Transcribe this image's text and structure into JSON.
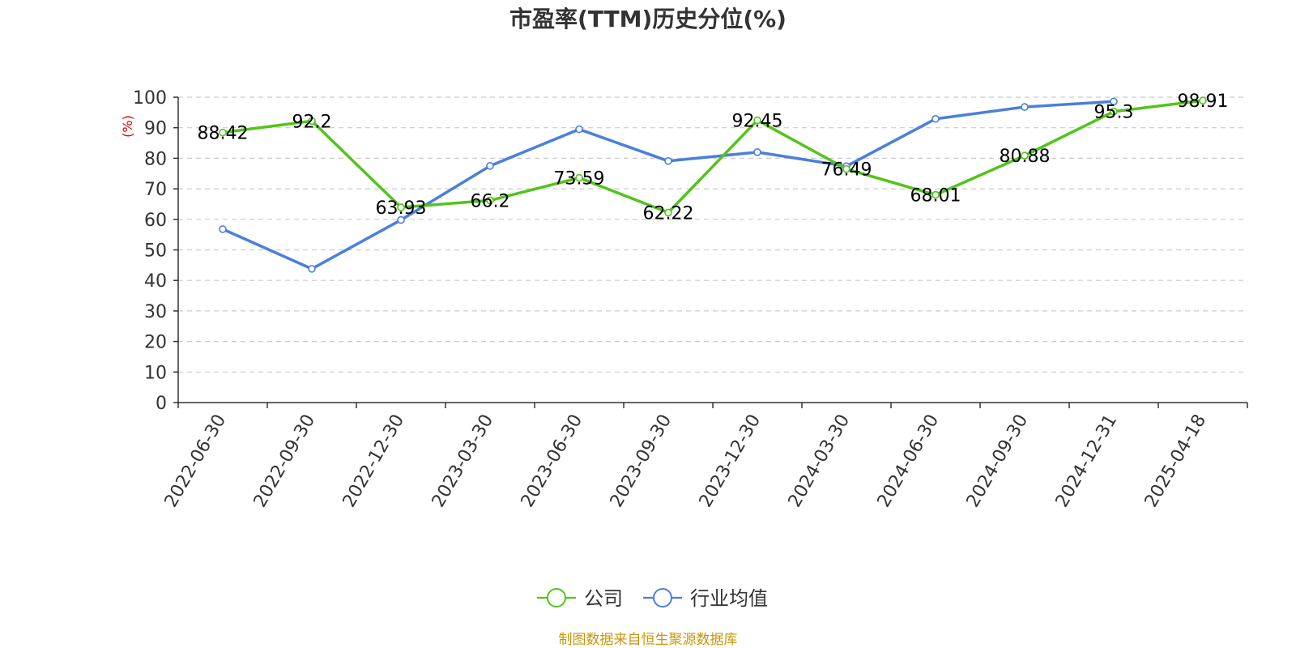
{
  "chart_data": {
    "type": "line",
    "title": "市盈率(TTM)历史分位(%)",
    "ylabel": "(%)",
    "ylim": [
      0,
      100
    ],
    "y_ticks": [
      "0",
      "10",
      "20",
      "30",
      "40",
      "50",
      "60",
      "70",
      "80",
      "90",
      "100"
    ],
    "categories": [
      "2022-06-30",
      "2022-09-30",
      "2022-12-30",
      "2023-03-30",
      "2023-06-30",
      "2023-09-30",
      "2023-12-30",
      "2024-03-30",
      "2024-06-30",
      "2024-09-30",
      "2024-12-31",
      "2025-04-18"
    ],
    "grid": true,
    "legend_position": "bottom",
    "series": [
      {
        "name": "公司",
        "color": "#52c41a",
        "values": [
          88.42,
          92.2,
          63.93,
          66.2,
          73.59,
          62.22,
          92.45,
          76.49,
          68.01,
          80.88,
          95.3,
          98.91
        ],
        "labels": [
          "88.42",
          "92.2",
          "63.93",
          "66.2",
          "73.59",
          "62.22",
          "92.45",
          "76.49",
          "68.01",
          "80.88",
          "95.3",
          "98.91"
        ]
      },
      {
        "name": "行业均值",
        "color": "#4a7fdc",
        "values": [
          56.8,
          43.8,
          59.8,
          77.5,
          89.5,
          79.1,
          82.0,
          77.4,
          92.9,
          96.8,
          98.6,
          null
        ]
      }
    ],
    "source": "制图数据来自恒生聚源数据库",
    "source_color": "#c8960c",
    "unit_color": "#e00000",
    "axis_color": "#333333",
    "grid_color": "#cccccc"
  }
}
